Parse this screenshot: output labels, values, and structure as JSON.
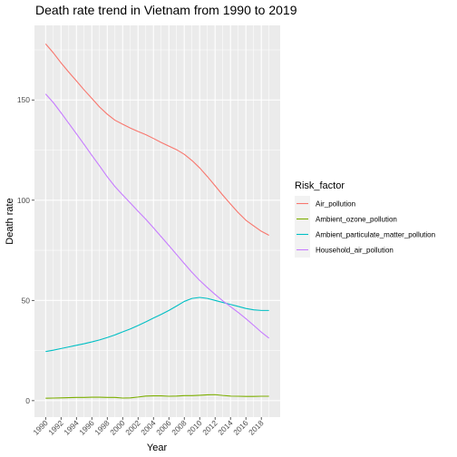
{
  "chart_data": {
    "type": "line",
    "title": "Death rate trend in Vietnam from 1990 to 2019",
    "xlabel": "Year",
    "ylabel": "Death rate",
    "xlim": [
      1988.55,
      2020.45
    ],
    "ylim": [
      -8.2,
      187.2
    ],
    "x_ticks": [
      1990,
      1992,
      1994,
      1996,
      1998,
      2000,
      2002,
      2004,
      2006,
      2008,
      2010,
      2012,
      2014,
      2016,
      2018
    ],
    "y_ticks": [
      0,
      50,
      100,
      150
    ],
    "grid": true,
    "legend_title": "Risk_factor",
    "legend_position": "right",
    "x": [
      1990,
      1991,
      1992,
      1993,
      1994,
      1995,
      1996,
      1997,
      1998,
      1999,
      2000,
      2001,
      2002,
      2003,
      2004,
      2005,
      2006,
      2007,
      2008,
      2009,
      2010,
      2011,
      2012,
      2013,
      2014,
      2015,
      2016,
      2017,
      2018,
      2019
    ],
    "series": [
      {
        "name": "Air_pollution",
        "color": "#F8766D",
        "values": [
          178.0,
          173.5,
          168.5,
          163.9,
          159.5,
          155.0,
          150.8,
          146.5,
          142.9,
          139.9,
          137.9,
          136.0,
          134.3,
          132.7,
          130.8,
          128.8,
          127.0,
          125.2,
          122.9,
          119.8,
          116.1,
          111.8,
          107.2,
          102.5,
          98.1,
          93.8,
          90.0,
          87.2,
          84.5,
          82.5
        ]
      },
      {
        "name": "Ambient_ozone_pollution",
        "color": "#7CAE00",
        "values": [
          1.2,
          1.3,
          1.4,
          1.5,
          1.6,
          1.6,
          1.7,
          1.7,
          1.6,
          1.6,
          1.3,
          1.4,
          1.8,
          2.3,
          2.4,
          2.4,
          2.2,
          2.3,
          2.5,
          2.5,
          2.7,
          2.9,
          3.0,
          2.6,
          2.3,
          2.2,
          2.1,
          2.1,
          2.2,
          2.2
        ]
      },
      {
        "name": "Ambient_particulate_matter_pollution",
        "color": "#00BFC4",
        "values": [
          24.5,
          25.2,
          26.0,
          26.8,
          27.6,
          28.4,
          29.3,
          30.3,
          31.5,
          32.8,
          34.3,
          35.8,
          37.5,
          39.3,
          41.2,
          43.0,
          45.0,
          47.2,
          49.5,
          51.0,
          51.5,
          51.0,
          50.0,
          49.0,
          48.0,
          47.0,
          46.0,
          45.3,
          45.0,
          45.0
        ]
      },
      {
        "name": "Household_air_pollution",
        "color": "#C77CFF",
        "values": [
          153.0,
          148.7,
          143.6,
          138.4,
          133.1,
          127.8,
          122.4,
          117.1,
          111.7,
          106.8,
          102.6,
          98.6,
          94.5,
          90.5,
          86.2,
          81.8,
          77.4,
          72.9,
          68.4,
          64.0,
          60.0,
          56.4,
          53.0,
          49.8,
          46.9,
          44.0,
          40.9,
          37.6,
          34.2,
          31.2
        ]
      }
    ]
  }
}
